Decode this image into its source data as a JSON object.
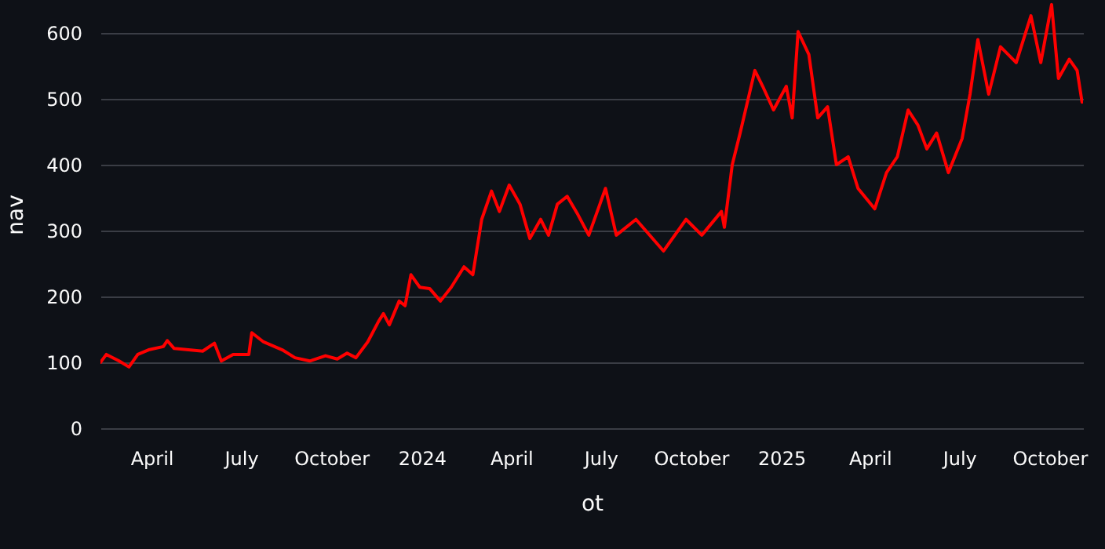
{
  "chart_data": {
    "type": "line",
    "xlabel": "ot",
    "ylabel": "nav",
    "x": [
      "2023-02-08",
      "2023-02-14",
      "2023-02-27",
      "2023-03-09",
      "2023-03-18",
      "2023-03-29",
      "2023-04-13",
      "2023-04-17",
      "2023-04-24",
      "2023-05-23",
      "2023-06-04",
      "2023-06-11",
      "2023-06-23",
      "2023-07-09",
      "2023-07-12",
      "2023-07-24",
      "2023-08-12",
      "2023-08-25",
      "2023-09-09",
      "2023-09-25",
      "2023-10-07",
      "2023-10-17",
      "2023-10-26",
      "2023-11-07",
      "2023-11-18",
      "2023-11-23",
      "2023-11-29",
      "2023-12-09",
      "2023-12-15",
      "2023-12-21",
      "2023-12-30",
      "2024-01-09",
      "2024-01-20",
      "2024-01-31",
      "2024-02-13",
      "2024-02-22",
      "2024-03-02",
      "2024-03-12",
      "2024-03-20",
      "2024-03-30",
      "2024-04-10",
      "2024-04-20",
      "2024-05-01",
      "2024-05-09",
      "2024-05-18",
      "2024-05-28",
      "2024-06-08",
      "2024-06-19",
      "2024-07-06",
      "2024-07-17",
      "2024-08-06",
      "2024-09-03",
      "2024-09-26",
      "2024-10-12",
      "2024-11-01",
      "2024-11-04",
      "2024-11-12",
      "2024-11-20",
      "2024-12-05",
      "2024-12-13",
      "2024-12-24",
      "2025-01-06",
      "2025-01-12",
      "2025-01-18",
      "2025-01-29",
      "2025-02-07",
      "2025-02-17",
      "2025-02-26",
      "2025-03-10",
      "2025-03-20",
      "2025-04-06",
      "2025-04-18",
      "2025-04-29",
      "2025-05-10",
      "2025-05-20",
      "2025-05-29",
      "2025-06-08",
      "2025-06-20",
      "2025-07-04",
      "2025-07-12",
      "2025-07-20",
      "2025-07-31",
      "2025-08-12",
      "2025-08-28",
      "2025-09-12",
      "2025-09-22",
      "2025-10-03",
      "2025-10-10",
      "2025-10-21",
      "2025-10-29",
      "2025-11-03"
    ],
    "series": [
      {
        "color": "#ff0000",
        "values": [
          100,
          112,
          102,
          93,
          112,
          119,
          124,
          133,
          121,
          117,
          129,
          102,
          112,
          112,
          145,
          131,
          119,
          107,
          102,
          110,
          105,
          114,
          107,
          131,
          162,
          174,
          157,
          193,
          186,
          233,
          214,
          212,
          193,
          214,
          245,
          233,
          317,
          360,
          329,
          369,
          340,
          288,
          317,
          293,
          340,
          352,
          324,
          293,
          364,
          293,
          317,
          269,
          317,
          293,
          329,
          305,
          400,
          448,
          543,
          519,
          483,
          519,
          471,
          602,
          567,
          471,
          488,
          400,
          412,
          364,
          333,
          388,
          412,
          483,
          460,
          424,
          448,
          388,
          440,
          507,
          590,
          507,
          579,
          555,
          626,
          555,
          643,
          531,
          560,
          543,
          495
        ]
      }
    ],
    "xlim": [
      "2023-02-08",
      "2025-11-04"
    ],
    "xticks": [
      {
        "value": "2023-04-01",
        "label": "April"
      },
      {
        "value": "2023-07-01",
        "label": "July"
      },
      {
        "value": "2023-10-01",
        "label": "October"
      },
      {
        "value": "2024-01-01",
        "label": "2024"
      },
      {
        "value": "2024-04-01",
        "label": "April"
      },
      {
        "value": "2024-07-01",
        "label": "July"
      },
      {
        "value": "2024-10-01",
        "label": "October"
      },
      {
        "value": "2025-01-01",
        "label": "2025"
      },
      {
        "value": "2025-04-01",
        "label": "April"
      },
      {
        "value": "2025-07-01",
        "label": "July"
      },
      {
        "value": "2025-10-01",
        "label": "October"
      }
    ],
    "ylim": [
      0,
      650
    ],
    "yticks": [
      0,
      100,
      200,
      300,
      400,
      500,
      600
    ],
    "grid": "y",
    "line_style": "solid"
  }
}
